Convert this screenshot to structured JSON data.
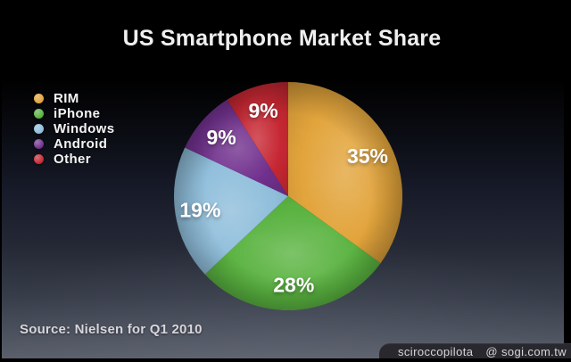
{
  "chart_data": {
    "type": "pie",
    "title": "US Smartphone Market Share",
    "legend_position": "left",
    "value_labels": "inside",
    "start_angle_deg": 0,
    "direction": "clockwise",
    "slices": [
      {
        "label": "RIM",
        "value": 35,
        "display": "35%",
        "color": "#E2A23A"
      },
      {
        "label": "iPhone",
        "value": 28,
        "display": "28%",
        "color": "#57B13E"
      },
      {
        "label": "Windows",
        "value": 19,
        "display": "19%",
        "color": "#8DBDDB"
      },
      {
        "label": "Android",
        "value": 9,
        "display": "9%",
        "color": "#6E2F8B"
      },
      {
        "label": "Other",
        "value": 9,
        "display": "9%",
        "color": "#C52631"
      }
    ]
  },
  "source": "Source: Nielsen for Q1 2010",
  "watermark": {
    "username": "sciroccopilota",
    "site": "@ sogi.com.tw"
  }
}
